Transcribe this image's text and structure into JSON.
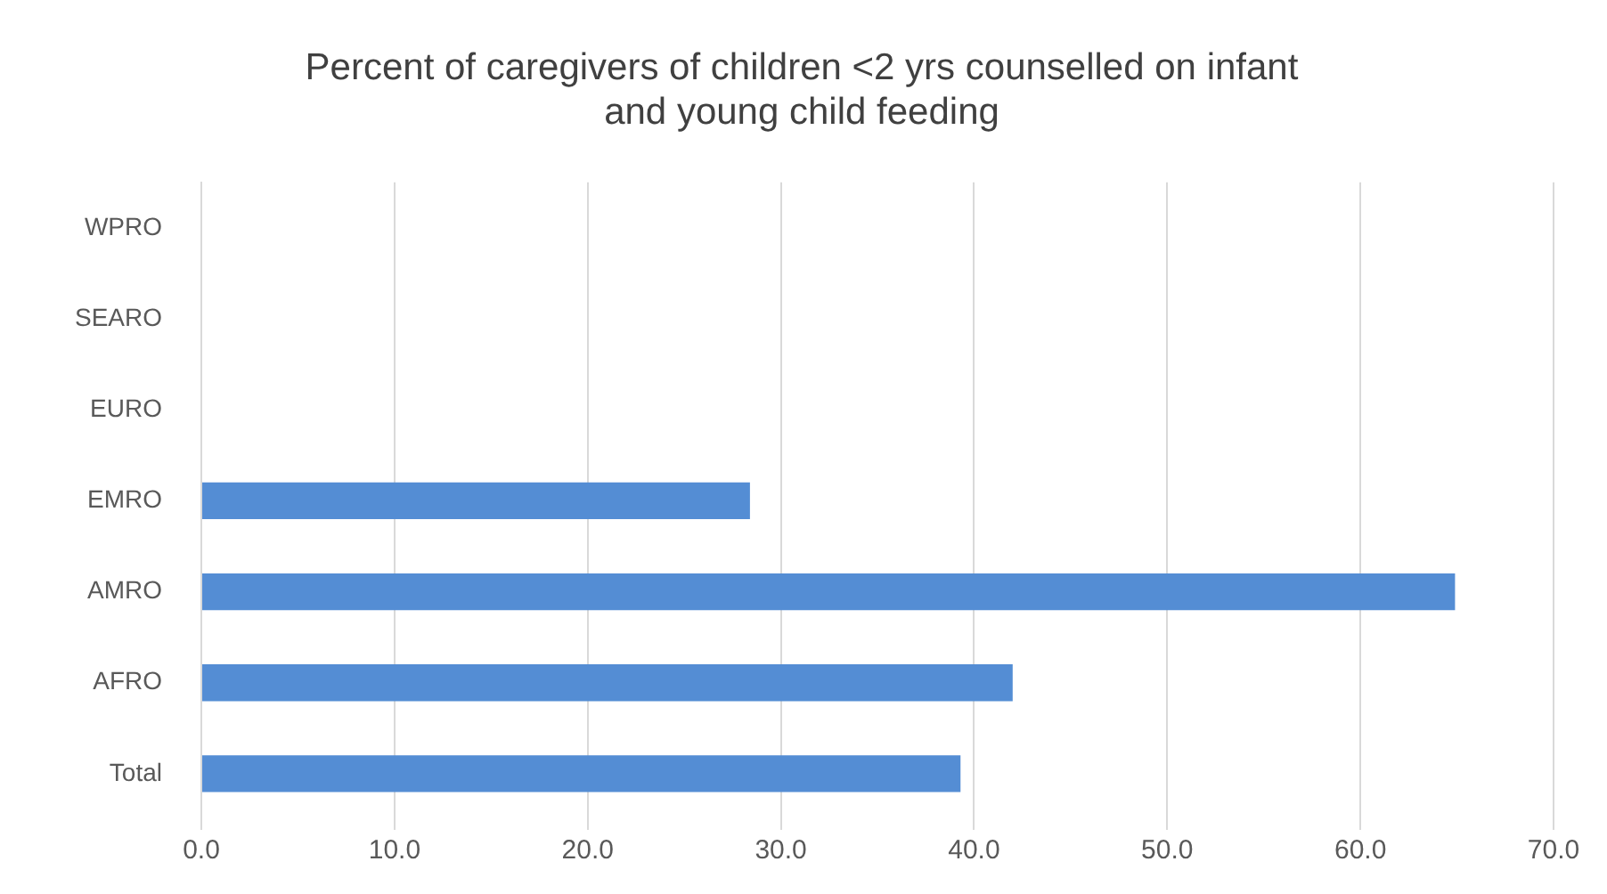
{
  "chart_data": {
    "type": "bar",
    "orientation": "horizontal",
    "title": "Percent of caregivers of children <2 yrs counselled on infant and young child feeding",
    "categories": [
      "WPRO",
      "SEARO",
      "EURO",
      "EMRO",
      "AMRO",
      "AFRO",
      "Total"
    ],
    "values": [
      null,
      null,
      null,
      28.4,
      64.9,
      42.0,
      39.3
    ],
    "color": "#548dd4",
    "xlim": [
      0,
      70
    ],
    "xticks": [
      {
        "value": 0,
        "label": "0.0"
      },
      {
        "value": 10,
        "label": "10.0"
      },
      {
        "value": 20,
        "label": "20.0"
      },
      {
        "value": 30,
        "label": "30.0"
      },
      {
        "value": 40,
        "label": "40.0"
      },
      {
        "value": 50,
        "label": "50.0"
      },
      {
        "value": 60,
        "label": "60.0"
      },
      {
        "value": 70,
        "label": "70.0"
      }
    ],
    "grid": "x",
    "legend": false
  }
}
